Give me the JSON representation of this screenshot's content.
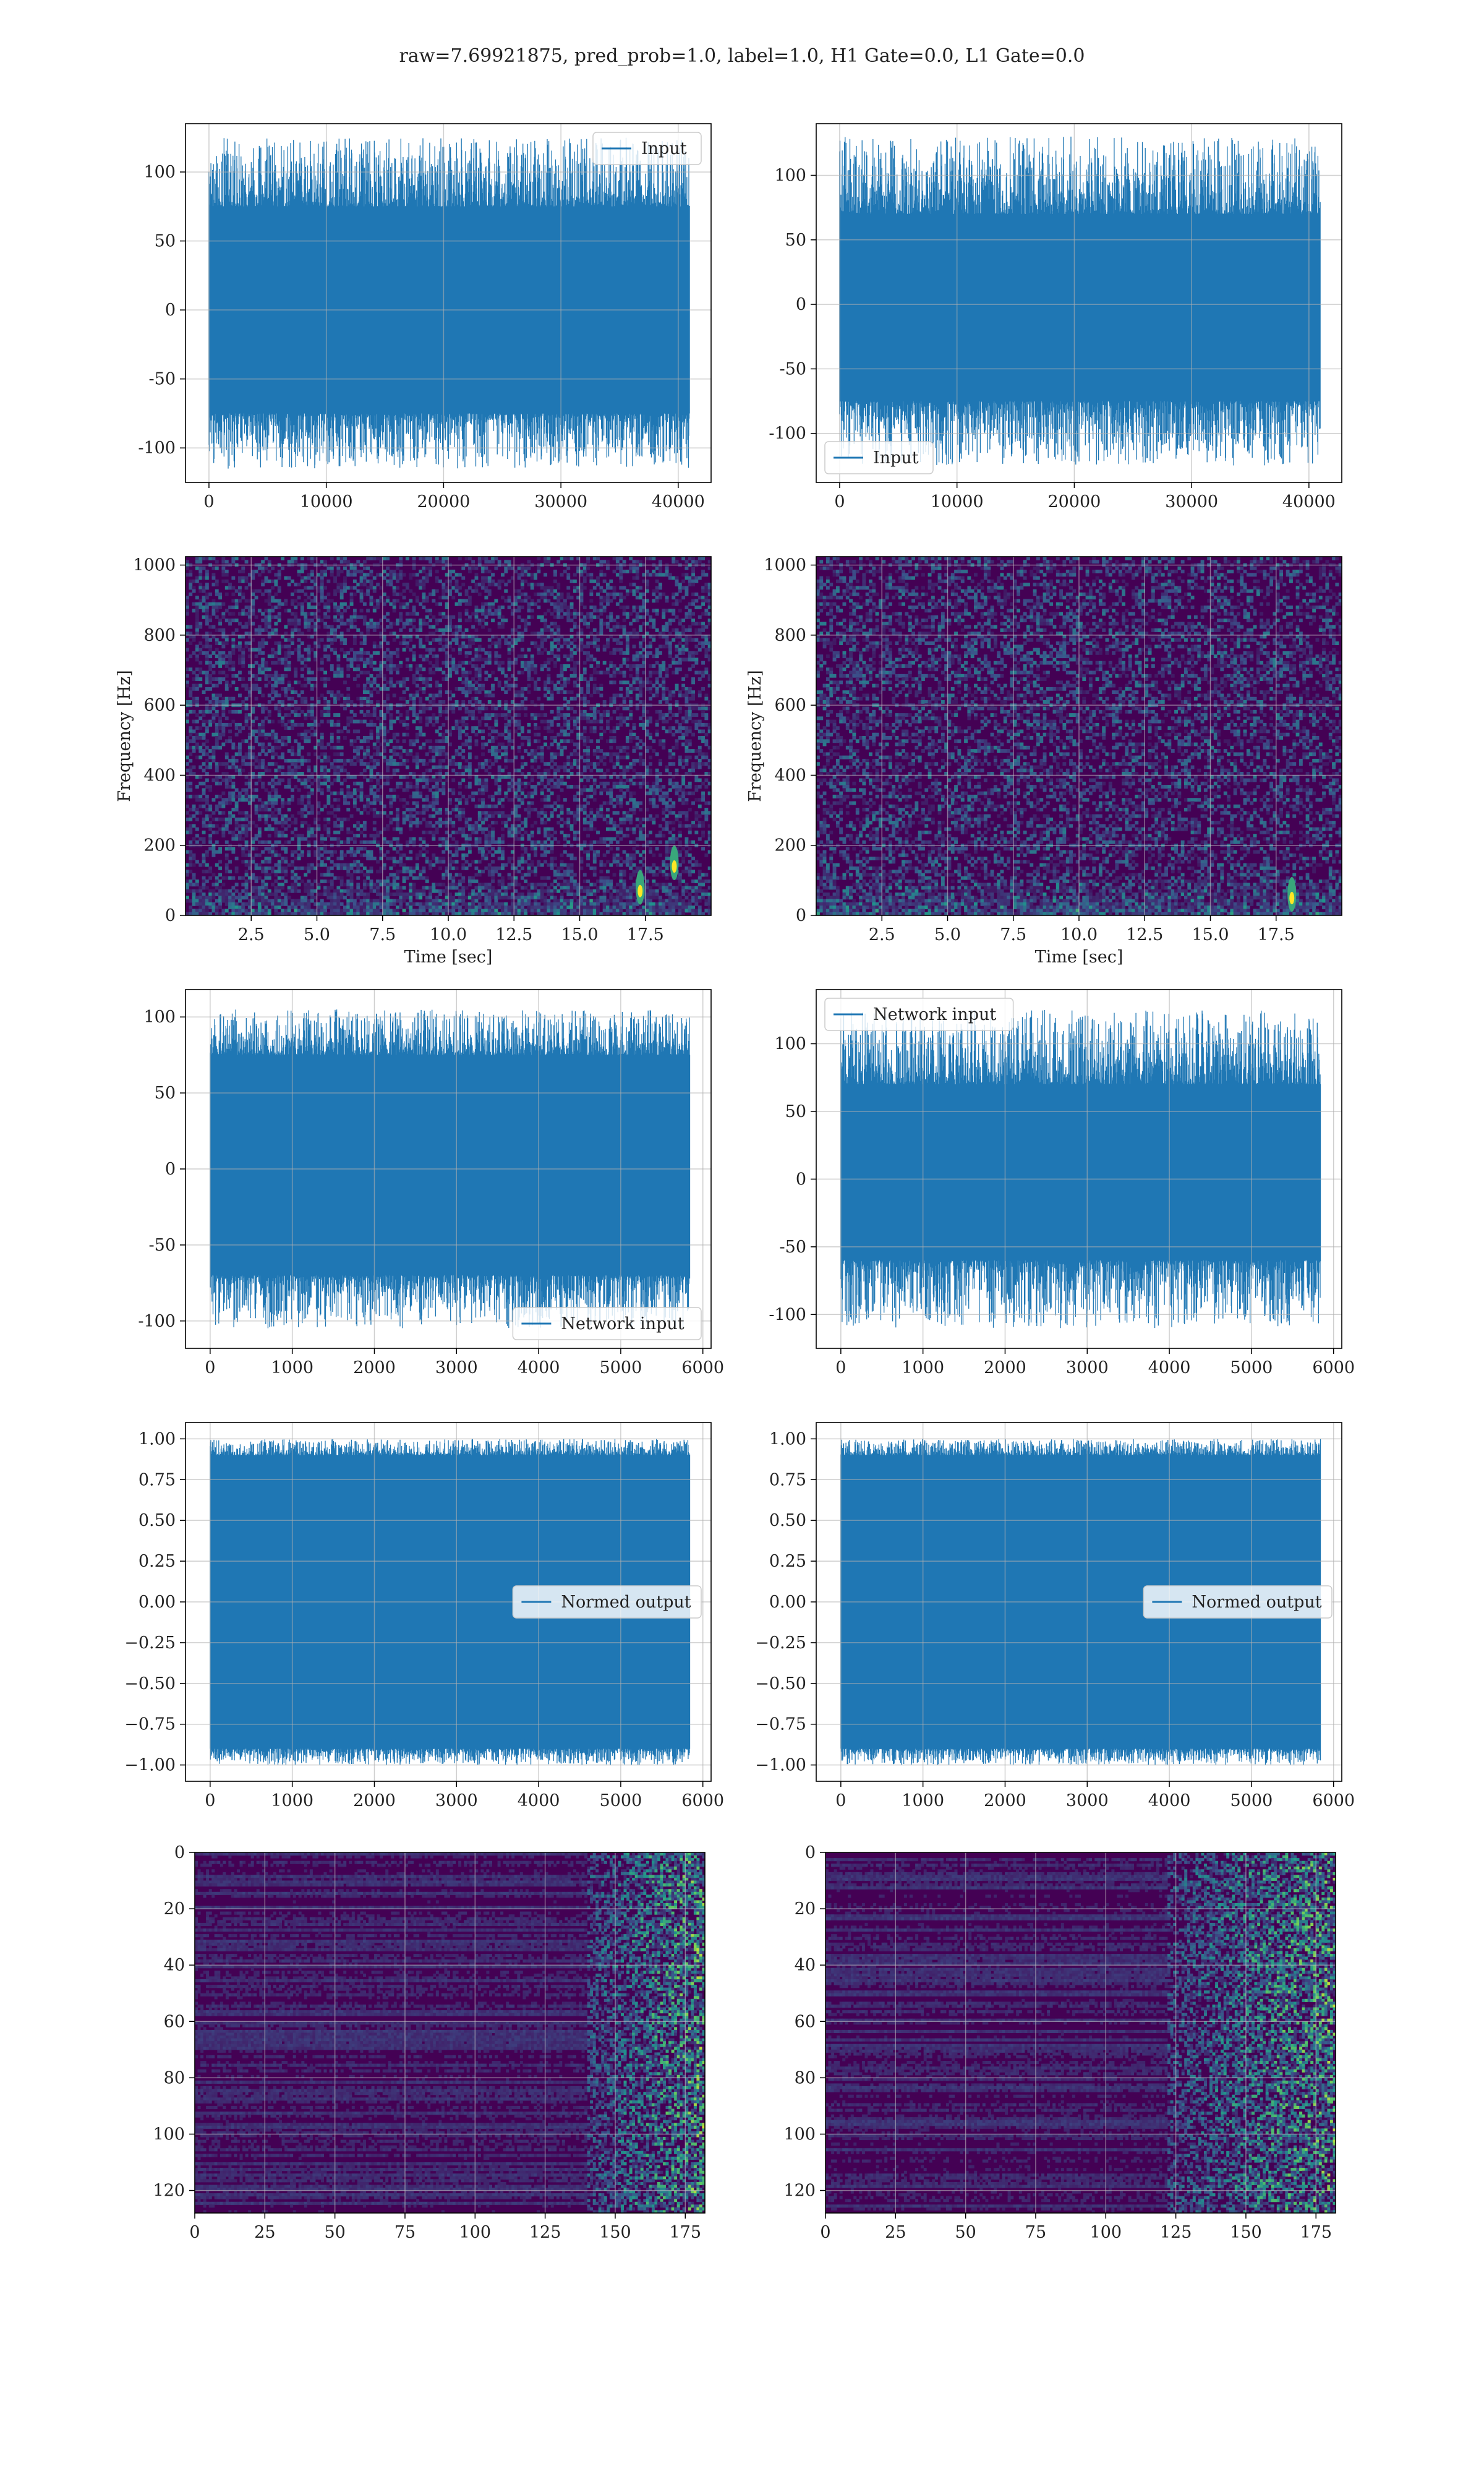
{
  "figure": {
    "suptitle": "raw=7.69921875, pred_prob=1.0, label=1.0, H1 Gate=0.0, L1 Gate=0.0"
  },
  "colors": {
    "line": "#1f77b4",
    "grid": "#b0b0b0",
    "viridis_low": "#440154",
    "viridis_mid": "#21918c",
    "viridis_high": "#fde725"
  },
  "chart_data": [
    {
      "id": "h1-input",
      "type": "line",
      "xlim": [
        -2000,
        42800
      ],
      "ylim": [
        -125,
        135
      ],
      "xticks": [
        0,
        10000,
        20000,
        30000,
        40000
      ],
      "yticks": [
        -100,
        -50,
        0,
        50,
        100
      ],
      "grid": true,
      "legend_position": "upper right",
      "series": [
        {
          "name": "Input",
          "x_range": [
            0,
            40959
          ],
          "envelope": [
            -75,
            75
          ],
          "peaks": [
            -115,
            125
          ]
        }
      ]
    },
    {
      "id": "l1-input",
      "type": "line",
      "xlim": [
        -2000,
        42800
      ],
      "ylim": [
        -138,
        140
      ],
      "xticks": [
        0,
        10000,
        20000,
        30000,
        40000
      ],
      "yticks": [
        -100,
        -50,
        0,
        50,
        100
      ],
      "grid": true,
      "legend_position": "lower left",
      "series": [
        {
          "name": "Input",
          "x_range": [
            0,
            40959
          ],
          "envelope": [
            -75,
            70
          ],
          "peaks": [
            -125,
            130
          ]
        }
      ]
    },
    {
      "id": "h1-spectrogram",
      "type": "heatmap",
      "xlim": [
        0,
        20
      ],
      "ylim": [
        0,
        1024
      ],
      "xticks": [
        2.5,
        5.0,
        7.5,
        10.0,
        12.5,
        15.0,
        17.5
      ],
      "yticks": [
        0,
        200,
        400,
        600,
        800,
        1000
      ],
      "xlabel": "Time [sec]",
      "ylabel": "Frequency [Hz]",
      "grid": true,
      "bright_spots": [
        {
          "x": 17.3,
          "y": 80
        },
        {
          "x": 18.6,
          "y": 150
        }
      ]
    },
    {
      "id": "l1-spectrogram",
      "type": "heatmap",
      "xlim": [
        0,
        20
      ],
      "ylim": [
        0,
        1024
      ],
      "xticks": [
        2.5,
        5.0,
        7.5,
        10.0,
        12.5,
        15.0,
        17.5
      ],
      "yticks": [
        0,
        200,
        400,
        600,
        800,
        1000
      ],
      "xlabel": "Time [sec]",
      "ylabel": "Frequency [Hz]",
      "grid": true,
      "bright_spots": [
        {
          "x": 18.1,
          "y": 60
        }
      ]
    },
    {
      "id": "h1-network-input",
      "type": "line",
      "xlim": [
        -300,
        6100
      ],
      "ylim": [
        -118,
        118
      ],
      "xticks": [
        0,
        1000,
        2000,
        3000,
        4000,
        5000,
        6000
      ],
      "yticks": [
        -100,
        -50,
        0,
        50,
        100
      ],
      "grid": true,
      "legend_position": "lower right",
      "series": [
        {
          "name": "Network input",
          "x_range": [
            0,
            5840
          ],
          "envelope": [
            -70,
            75
          ],
          "peaks": [
            -105,
            105
          ]
        }
      ]
    },
    {
      "id": "l1-network-input",
      "type": "line",
      "xlim": [
        -300,
        6100
      ],
      "ylim": [
        -125,
        140
      ],
      "xticks": [
        0,
        1000,
        2000,
        3000,
        4000,
        5000,
        6000
      ],
      "yticks": [
        -100,
        -50,
        0,
        50,
        100
      ],
      "grid": true,
      "legend_position": "upper left",
      "series": [
        {
          "name": "Network input",
          "x_range": [
            0,
            5840
          ],
          "envelope": [
            -60,
            70
          ],
          "peaks": [
            -110,
            125
          ]
        }
      ]
    },
    {
      "id": "h1-normed-output",
      "type": "line",
      "xlim": [
        -300,
        6100
      ],
      "ylim": [
        -1.1,
        1.1
      ],
      "xticks": [
        0,
        1000,
        2000,
        3000,
        4000,
        5000,
        6000
      ],
      "yticks": [
        -1.0,
        -0.75,
        -0.5,
        -0.25,
        0.0,
        0.25,
        0.5,
        0.75,
        1.0
      ],
      "grid": true,
      "legend_position": "center right",
      "series": [
        {
          "name": "Normed output",
          "x_range": [
            0,
            5840
          ],
          "envelope": [
            -0.9,
            0.9
          ],
          "peaks": [
            -1.0,
            1.0
          ]
        }
      ]
    },
    {
      "id": "l1-normed-output",
      "type": "line",
      "xlim": [
        -300,
        6100
      ],
      "ylim": [
        -1.1,
        1.1
      ],
      "xticks": [
        0,
        1000,
        2000,
        3000,
        4000,
        5000,
        6000
      ],
      "yticks": [
        -1.0,
        -0.75,
        -0.5,
        -0.25,
        0.0,
        0.25,
        0.5,
        0.75,
        1.0
      ],
      "grid": true,
      "legend_position": "center right",
      "series": [
        {
          "name": "Normed output",
          "x_range": [
            0,
            5840
          ],
          "envelope": [
            -0.9,
            0.9
          ],
          "peaks": [
            -1.0,
            1.0
          ]
        }
      ]
    },
    {
      "id": "h1-feature-map",
      "type": "heatmap",
      "xlim": [
        0,
        182
      ],
      "ylim": [
        128,
        0
      ],
      "xticks": [
        0,
        25,
        50,
        75,
        100,
        125,
        150,
        175
      ],
      "yticks": [
        0,
        20,
        40,
        60,
        80,
        100,
        120
      ],
      "grid": true,
      "active_from_x": 140
    },
    {
      "id": "l1-feature-map",
      "type": "heatmap",
      "xlim": [
        0,
        182
      ],
      "ylim": [
        128,
        0
      ],
      "xticks": [
        0,
        25,
        50,
        75,
        100,
        125,
        150,
        175
      ],
      "yticks": [
        0,
        20,
        40,
        60,
        80,
        100,
        120
      ],
      "grid": true,
      "active_from_x": 122
    }
  ]
}
